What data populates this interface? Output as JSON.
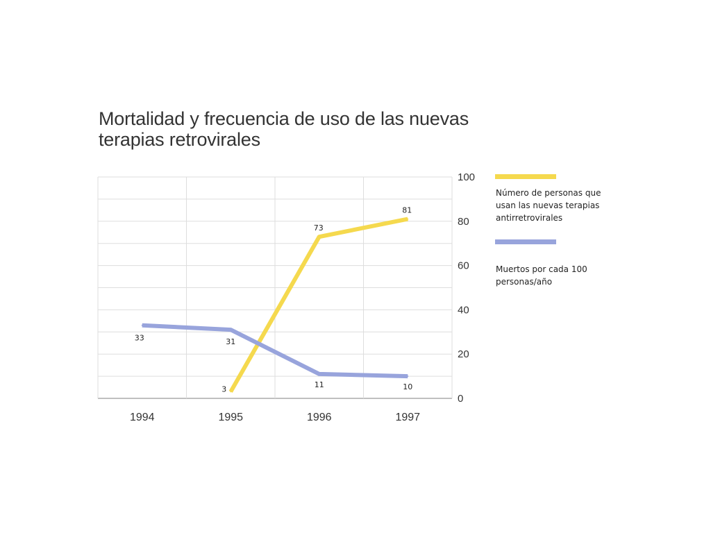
{
  "chart_data": {
    "type": "line",
    "title": "Mortalidad y frecuencia de uso de las nuevas terapias retrovirales",
    "categories": [
      "1994",
      "1995",
      "1996",
      "1997"
    ],
    "ylim": [
      0,
      100
    ],
    "yticks": [
      "0",
      "20",
      "40",
      "60",
      "80",
      "100"
    ],
    "y_axis_side": "right",
    "grid": true,
    "legend_position": "right",
    "series": [
      {
        "name": "Número de personas que usan las nuevas terapias antirretrovirales",
        "color": "#f5d94e",
        "values": [
          null,
          3,
          73,
          81
        ],
        "labels": [
          "",
          "3",
          "73",
          "81"
        ]
      },
      {
        "name": "Muertos por cada 100 personas/año",
        "color": "#98a4dc",
        "values": [
          33,
          31,
          11,
          10
        ],
        "labels": [
          "33",
          "31",
          "11",
          "10"
        ]
      }
    ]
  },
  "legend": {
    "item1": "Número de personas que usan las nuevas terapias antirretrovirales",
    "item2": "Muertos por cada 100 personas/año"
  }
}
